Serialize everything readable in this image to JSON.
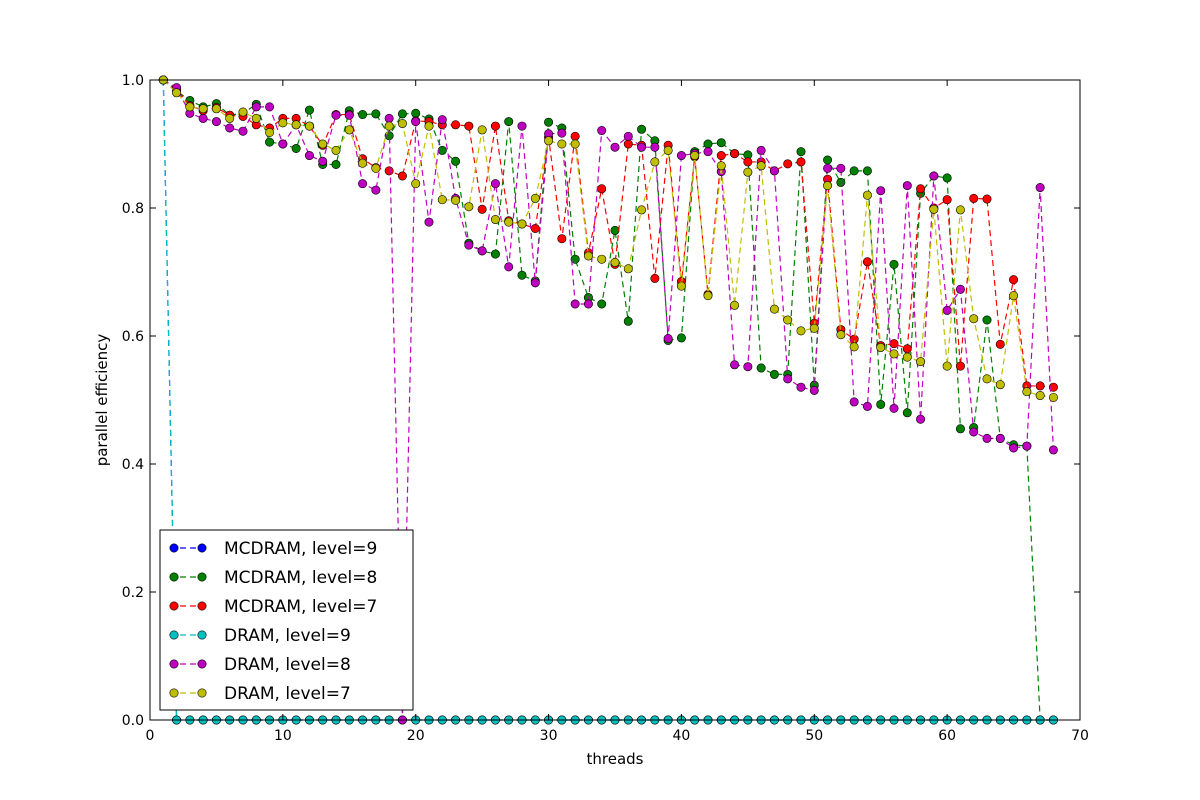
{
  "chart_data": {
    "type": "line",
    "title": "",
    "xlabel": "threads",
    "ylabel": "parallel efficiency",
    "xlim": [
      0,
      70
    ],
    "ylim": [
      0,
      1.0
    ],
    "xticks": [
      "0",
      "10",
      "20",
      "30",
      "40",
      "50",
      "60",
      "70"
    ],
    "yticks": [
      "0.0",
      "0.2",
      "0.4",
      "0.6",
      "0.8",
      "1.0"
    ],
    "grid": false,
    "legend_position": "lower-left",
    "x": [
      1,
      2,
      3,
      4,
      5,
      6,
      7,
      8,
      9,
      10,
      11,
      12,
      13,
      14,
      15,
      16,
      17,
      18,
      19,
      20,
      21,
      22,
      23,
      24,
      25,
      26,
      27,
      28,
      29,
      30,
      31,
      32,
      33,
      34,
      35,
      36,
      37,
      38,
      39,
      40,
      41,
      42,
      43,
      44,
      45,
      46,
      47,
      48,
      49,
      50,
      51,
      52,
      53,
      54,
      55,
      56,
      57,
      58,
      59,
      60,
      61,
      62,
      63,
      64,
      65,
      66,
      67,
      68
    ],
    "series": [
      {
        "name": "MCDRAM, level=9",
        "color": "#0000ff",
        "values": [
          1.0,
          0,
          0,
          0,
          0,
          0,
          0,
          0,
          0,
          0,
          0,
          0,
          0,
          0,
          0,
          0,
          0,
          0,
          0,
          0,
          0,
          0,
          0,
          0,
          0,
          0,
          0,
          0,
          0,
          0,
          0,
          0,
          0,
          0,
          0,
          0,
          0,
          0,
          0,
          0,
          0,
          0,
          0,
          0,
          0,
          0,
          0,
          0,
          0,
          0,
          0,
          0,
          0,
          0,
          0,
          0,
          0,
          0,
          0,
          0,
          0,
          0,
          0,
          0,
          0,
          0,
          0,
          0
        ]
      },
      {
        "name": "MCDRAM, level=8",
        "color": "#008000",
        "values": [
          1.0,
          0.983,
          0.968,
          0.958,
          0.963,
          0.945,
          0.948,
          0.962,
          0.903,
          0.9,
          0.893,
          0.953,
          0.868,
          0.868,
          0.952,
          0.946,
          0.947,
          0.913,
          0.947,
          0.948,
          0.939,
          0.89,
          0.873,
          0.745,
          0.733,
          0.728,
          0.935,
          0.695,
          0.686,
          0.934,
          0.925,
          0.72,
          0.66,
          0.65,
          0.765,
          0.623,
          0.923,
          0.905,
          0.593,
          0.597,
          0.888,
          0.9,
          0.902,
          0.885,
          0.883,
          0.55,
          0.54,
          0.54,
          0.888,
          0.523,
          0.875,
          0.84,
          0.858,
          0.858,
          0.493,
          0.712,
          0.48,
          0.823,
          0.85,
          0.847,
          0.455,
          0.457,
          0.625,
          0.44,
          0.43,
          0.428,
          0.0,
          0.0
        ]
      },
      {
        "name": "MCDRAM, level=7",
        "color": "#ff0000",
        "values": [
          1.0,
          0.985,
          0.96,
          0.952,
          0.957,
          0.945,
          0.943,
          0.93,
          0.925,
          0.94,
          0.94,
          0.928,
          0.898,
          0.946,
          0.946,
          0.877,
          0.863,
          0.858,
          0.85,
          0.936,
          0.935,
          0.93,
          0.93,
          0.928,
          0.798,
          0.928,
          0.78,
          0.775,
          0.768,
          0.91,
          0.752,
          0.912,
          0.73,
          0.83,
          0.712,
          0.9,
          0.898,
          0.69,
          0.898,
          0.685,
          0.88,
          0.665,
          0.882,
          0.885,
          0.872,
          0.872,
          0.858,
          0.869,
          0.872,
          0.62,
          0.845,
          0.61,
          0.595,
          0.716,
          0.585,
          0.588,
          0.58,
          0.83,
          0.8,
          0.813,
          0.553,
          0.815,
          0.814,
          0.587,
          0.688,
          0.522,
          0.522,
          0.52
        ]
      },
      {
        "name": "DRAM, level=9",
        "color": "#00bfbf",
        "values": [
          1.0,
          0,
          0,
          0,
          0,
          0,
          0,
          0,
          0,
          0,
          0,
          0,
          0,
          0,
          0,
          0,
          0,
          0,
          0,
          0,
          0,
          0,
          0,
          0,
          0,
          0,
          0,
          0,
          0,
          0,
          0,
          0,
          0,
          0,
          0,
          0,
          0,
          0,
          0,
          0,
          0,
          0,
          0,
          0,
          0,
          0,
          0,
          0,
          0,
          0,
          0,
          0,
          0,
          0,
          0,
          0,
          0,
          0,
          0,
          0,
          0,
          0,
          0,
          0,
          0,
          0,
          0,
          0
        ]
      },
      {
        "name": "DRAM, level=8",
        "color": "#bf00bf",
        "values": [
          1.0,
          0.988,
          0.948,
          0.94,
          0.935,
          0.925,
          0.92,
          0.958,
          0.958,
          0.9,
          0.93,
          0.882,
          0.873,
          0.945,
          0.945,
          0.838,
          0.828,
          0.94,
          0.0,
          0.935,
          0.778,
          0.938,
          0.815,
          0.742,
          0.733,
          0.838,
          0.708,
          0.928,
          0.683,
          0.916,
          0.917,
          0.65,
          0.65,
          0.921,
          0.895,
          0.912,
          0.895,
          0.895,
          0.596,
          0.882,
          0.885,
          0.888,
          0.857,
          0.555,
          0.552,
          0.89,
          0.858,
          0.533,
          0.52,
          0.515,
          0.862,
          0.862,
          0.497,
          0.49,
          0.827,
          0.487,
          0.835,
          0.47,
          0.85,
          0.64,
          0.673,
          0.45,
          0.44,
          0.44,
          0.425,
          0.428,
          0.832,
          0.422
        ]
      },
      {
        "name": "DRAM, level=7",
        "color": "#bfbf00",
        "values": [
          1.0,
          0.98,
          0.958,
          0.955,
          0.955,
          0.94,
          0.95,
          0.94,
          0.918,
          0.933,
          0.93,
          0.928,
          0.9,
          0.89,
          0.922,
          0.87,
          0.862,
          0.928,
          0.932,
          0.838,
          0.928,
          0.813,
          0.812,
          0.802,
          0.922,
          0.782,
          0.778,
          0.775,
          0.815,
          0.905,
          0.9,
          0.9,
          0.725,
          0.72,
          0.715,
          0.705,
          0.797,
          0.872,
          0.89,
          0.678,
          0.882,
          0.663,
          0.866,
          0.648,
          0.856,
          0.866,
          0.642,
          0.625,
          0.608,
          0.612,
          0.835,
          0.602,
          0.583,
          0.82,
          0.582,
          0.572,
          0.567,
          0.56,
          0.798,
          0.553,
          0.797,
          0.627,
          0.533,
          0.524,
          0.663,
          0.513,
          0.507,
          0.504
        ]
      }
    ]
  }
}
